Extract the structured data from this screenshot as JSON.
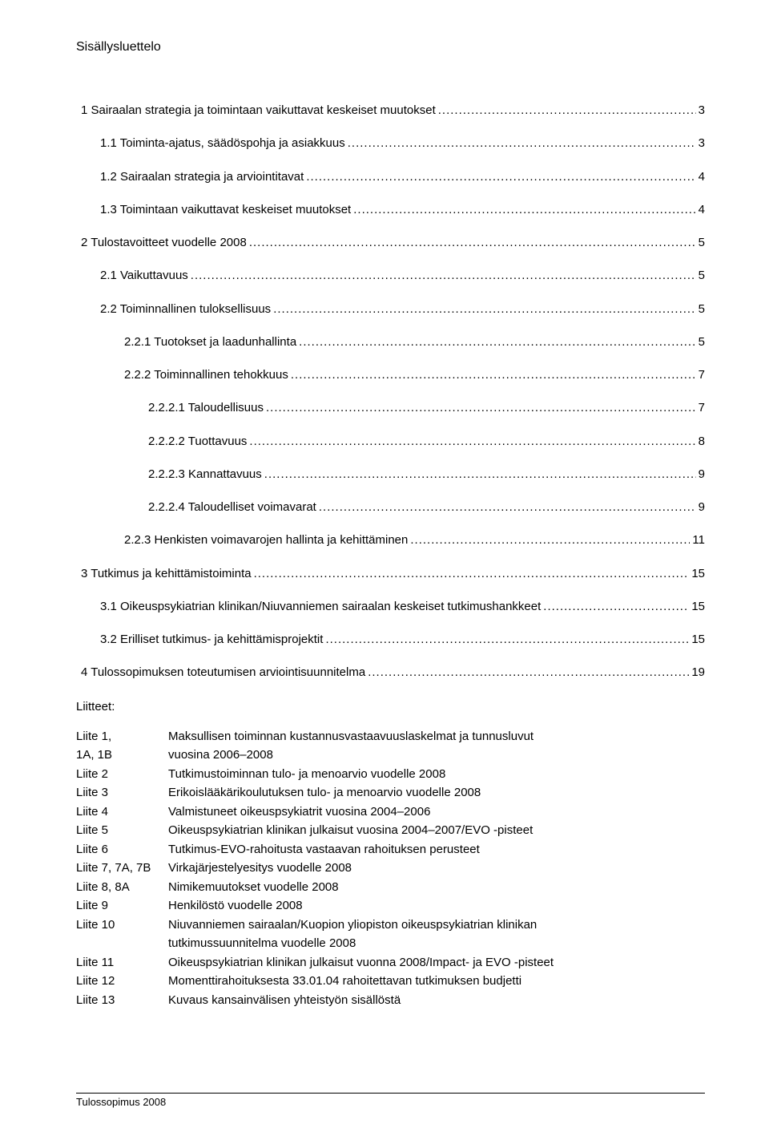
{
  "title": "Sisällysluettelo",
  "toc": [
    {
      "label": "1 Sairaalan strategia ja toimintaan vaikuttavat keskeiset muutokset",
      "page": "3",
      "indent": 0,
      "spacedBefore": false
    },
    {
      "label": "1.1 Toiminta-ajatus, säädöspohja ja asiakkuus",
      "page": "3",
      "indent": 1,
      "spacedBefore": true
    },
    {
      "label": "1.2 Sairaalan strategia ja arviointitavat",
      "page": "4",
      "indent": 1,
      "spacedBefore": true
    },
    {
      "label": "1.3 Toimintaan vaikuttavat keskeiset muutokset",
      "page": "4",
      "indent": 1,
      "spacedBefore": true
    },
    {
      "label": "2 Tulostavoitteet vuodelle 2008",
      "page": "5",
      "indent": 0,
      "spacedBefore": true
    },
    {
      "label": "2.1 Vaikuttavuus",
      "page": "5",
      "indent": 1,
      "spacedBefore": true
    },
    {
      "label": "2.2 Toiminnallinen tuloksellisuus",
      "page": "5",
      "indent": 1,
      "spacedBefore": true
    },
    {
      "label": "2.2.1 Tuotokset ja laadunhallinta",
      "page": "5",
      "indent": 2,
      "spacedBefore": true
    },
    {
      "label": "2.2.2 Toiminnallinen tehokkuus",
      "page": "7",
      "indent": 2,
      "spacedBefore": true
    },
    {
      "label": "2.2.2.1 Taloudellisuus",
      "page": "7",
      "indent": 3,
      "spacedBefore": true
    },
    {
      "label": "2.2.2.2 Tuottavuus",
      "page": "8",
      "indent": 3,
      "spacedBefore": true
    },
    {
      "label": "2.2.2.3 Kannattavuus",
      "page": "9",
      "indent": 3,
      "spacedBefore": true
    },
    {
      "label": "2.2.2.4 Taloudelliset voimavarat",
      "page": "9",
      "indent": 3,
      "spacedBefore": true
    },
    {
      "label": "2.2.3 Henkisten voimavarojen hallinta ja kehittäminen",
      "page": "11",
      "indent": 2,
      "spacedBefore": true
    },
    {
      "label": "3 Tutkimus ja kehittämistoiminta",
      "page": "15",
      "indent": 0,
      "spacedBefore": true
    },
    {
      "label": "3.1 Oikeuspsykiatrian klinikan/Niuvanniemen sairaalan keskeiset tutkimushankkeet",
      "page": "15",
      "indent": 1,
      "spacedBefore": true
    },
    {
      "label": "3.2 Erilliset tutkimus- ja kehittämisprojektit",
      "page": "15",
      "indent": 1,
      "spacedBefore": true
    },
    {
      "label": "4 Tulossopimuksen toteutumisen arviointisuunnitelma",
      "page": "19",
      "indent": 0,
      "spacedBefore": true
    }
  ],
  "attachmentsHeading": "Liitteet:",
  "attachments": [
    {
      "key": "Liite 1,",
      "value": "Maksullisen toiminnan kustannusvastaavuuslaskelmat ja tunnusluvut"
    },
    {
      "key": "1A, 1B",
      "value": "vuosina 2006–2008"
    },
    {
      "key": "Liite 2",
      "value": "Tutkimustoiminnan tulo- ja menoarvio vuodelle 2008"
    },
    {
      "key": "Liite 3",
      "value": "Erikoislääkärikoulutuksen tulo- ja menoarvio vuodelle 2008"
    },
    {
      "key": "Liite 4",
      "value": "Valmistuneet oikeuspsykiatrit vuosina 2004–2006"
    },
    {
      "key": "Liite 5",
      "value": "Oikeuspsykiatrian klinikan julkaisut vuosina 2004–2007/EVO -pisteet"
    },
    {
      "key": "Liite 6",
      "value": "Tutkimus-EVO-rahoitusta vastaavan rahoituksen perusteet"
    },
    {
      "key": "Liite 7, 7A, 7B",
      "value": "Virkajärjestelyesitys vuodelle 2008"
    },
    {
      "key": "Liite 8, 8A",
      "value": "Nimikemuutokset vuodelle 2008"
    },
    {
      "key": "Liite 9",
      "value": "Henkilöstö vuodelle 2008"
    },
    {
      "key": "Liite 10",
      "value": "Niuvanniemen sairaalan/Kuopion yliopiston oikeuspsykiatrian klinikan"
    },
    {
      "key": "",
      "value": "tutkimussuunnitelma vuodelle 2008"
    },
    {
      "key": "Liite 11",
      "value": "Oikeuspsykiatrian klinikan julkaisut vuonna 2008/Impact- ja EVO -pisteet"
    },
    {
      "key": "Liite 12",
      "value": "Momenttirahoituksesta 33.01.04 rahoitettavan tutkimuksen budjetti"
    },
    {
      "key": "Liite 13",
      "value": "Kuvaus kansainvälisen yhteistyön sisällöstä"
    }
  ],
  "footer": "Tulossopimus 2008"
}
